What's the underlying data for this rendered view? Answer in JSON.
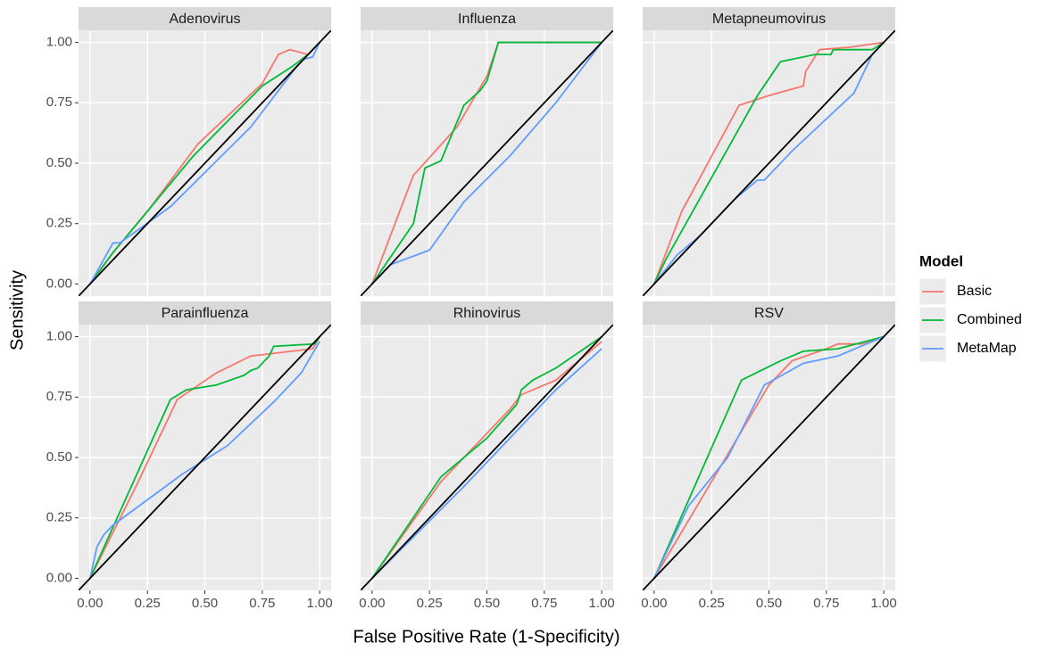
{
  "xlabel": "False Positive Rate (1-Specificity)",
  "ylabel": "Sensitivity",
  "legend": {
    "title": "Model",
    "position": "right"
  },
  "chart_data": [
    {
      "type": "line",
      "title": "Adenovirus",
      "xlim": [
        -0.05,
        1.05
      ],
      "ylim": [
        -0.05,
        1.05
      ],
      "xticks": [
        {
          "value": 0,
          "label": "0.00"
        },
        0.25,
        {
          "value": 0.5,
          "label": "0.50"
        },
        0.75,
        {
          "value": 1,
          "label": "1.00"
        }
      ],
      "yticks": [
        {
          "value": 0,
          "label": "0.00"
        },
        0.25,
        {
          "value": 0.5,
          "label": "0.50"
        },
        0.75,
        {
          "value": 1,
          "label": "1.00"
        }
      ],
      "grid": true,
      "reference_line": {
        "slope": 1,
        "intercept": 0,
        "color": "#000000"
      },
      "series": [
        {
          "name": "Basic",
          "color": "#F8766D",
          "x": [
            0,
            0.1,
            0.25,
            0.47,
            0.75,
            0.82,
            0.87,
            0.95,
            1
          ],
          "values": [
            0,
            0.13,
            0.3,
            0.58,
            0.83,
            0.95,
            0.97,
            0.95,
            1
          ]
        },
        {
          "name": "Combined",
          "color": "#00BA38",
          "x": [
            0,
            0.1,
            0.45,
            0.75,
            0.88,
            0.95,
            1
          ],
          "values": [
            0,
            0.13,
            0.53,
            0.82,
            0.9,
            0.95,
            1
          ]
        },
        {
          "name": "MetaMap",
          "color": "#619CFF",
          "x": [
            0,
            0.1,
            0.13,
            0.35,
            0.7,
            0.9,
            0.93,
            0.97,
            1
          ],
          "values": [
            0,
            0.17,
            0.17,
            0.32,
            0.65,
            0.9,
            0.93,
            0.94,
            1
          ]
        }
      ]
    },
    {
      "type": "line",
      "title": "Influenza",
      "xlim": [
        -0.05,
        1.05
      ],
      "ylim": [
        -0.05,
        1.05
      ],
      "xticks": [
        {
          "value": 0,
          "label": "0.00"
        },
        0.25,
        {
          "value": 0.5,
          "label": "0.50"
        },
        0.75,
        {
          "value": 1,
          "label": "1.00"
        }
      ],
      "yticks": [
        {
          "value": 0,
          "label": "0.00"
        },
        0.25,
        {
          "value": 0.5,
          "label": "0.50"
        },
        0.75,
        {
          "value": 1,
          "label": "1.00"
        }
      ],
      "grid": true,
      "reference_line": {
        "slope": 1,
        "intercept": 0,
        "color": "#000000"
      },
      "series": [
        {
          "name": "Basic",
          "color": "#F8766D",
          "x": [
            0,
            0.1,
            0.18,
            0.37,
            0.45,
            0.5,
            0.55,
            1
          ],
          "values": [
            0,
            0.25,
            0.45,
            0.65,
            0.78,
            0.86,
            1,
            1
          ]
        },
        {
          "name": "Combined",
          "color": "#00BA38",
          "x": [
            0,
            0.18,
            0.23,
            0.3,
            0.4,
            0.47,
            0.5,
            0.55,
            1
          ],
          "values": [
            0,
            0.25,
            0.48,
            0.51,
            0.74,
            0.8,
            0.84,
            1,
            1
          ]
        },
        {
          "name": "MetaMap",
          "color": "#619CFF",
          "x": [
            0,
            0.08,
            0.25,
            0.4,
            0.6,
            0.8,
            1
          ],
          "values": [
            0,
            0.08,
            0.14,
            0.34,
            0.53,
            0.75,
            1
          ]
        }
      ]
    },
    {
      "type": "line",
      "title": "Metapneumovirus",
      "xlim": [
        -0.05,
        1.05
      ],
      "ylim": [
        -0.05,
        1.05
      ],
      "xticks": [
        {
          "value": 0,
          "label": "0.00"
        },
        0.25,
        {
          "value": 0.5,
          "label": "0.50"
        },
        0.75,
        {
          "value": 1,
          "label": "1.00"
        }
      ],
      "yticks": [
        {
          "value": 0,
          "label": "0.00"
        },
        0.25,
        {
          "value": 0.5,
          "label": "0.50"
        },
        0.75,
        {
          "value": 1,
          "label": "1.00"
        }
      ],
      "grid": true,
      "reference_line": {
        "slope": 1,
        "intercept": 0,
        "color": "#000000"
      },
      "series": [
        {
          "name": "Basic",
          "color": "#F8766D",
          "x": [
            0,
            0.12,
            0.37,
            0.5,
            0.65,
            0.66,
            0.72,
            0.85,
            1
          ],
          "values": [
            0,
            0.3,
            0.74,
            0.78,
            0.82,
            0.88,
            0.97,
            0.98,
            1
          ]
        },
        {
          "name": "Combined",
          "color": "#00BA38",
          "x": [
            0,
            0.05,
            0.45,
            0.55,
            0.7,
            0.77,
            0.78,
            0.95,
            1
          ],
          "values": [
            0,
            0.1,
            0.78,
            0.92,
            0.95,
            0.95,
            0.97,
            0.97,
            1
          ]
        },
        {
          "name": "MetaMap",
          "color": "#619CFF",
          "x": [
            0,
            0.1,
            0.2,
            0.35,
            0.45,
            0.48,
            0.6,
            0.87,
            0.95,
            1
          ],
          "values": [
            0,
            0.12,
            0.2,
            0.35,
            0.43,
            0.43,
            0.55,
            0.79,
            0.95,
            1
          ]
        }
      ]
    },
    {
      "type": "line",
      "title": "Parainfluenza",
      "xlim": [
        -0.05,
        1.05
      ],
      "ylim": [
        -0.05,
        1.05
      ],
      "xticks": [
        {
          "value": 0,
          "label": "0.00"
        },
        0.25,
        {
          "value": 0.5,
          "label": "0.50"
        },
        0.75,
        {
          "value": 1,
          "label": "1.00"
        }
      ],
      "yticks": [
        {
          "value": 0,
          "label": "0.00"
        },
        0.25,
        {
          "value": 0.5,
          "label": "0.50"
        },
        0.75,
        {
          "value": 1,
          "label": "1.00"
        }
      ],
      "grid": true,
      "reference_line": {
        "slope": 1,
        "intercept": 0,
        "color": "#000000"
      },
      "series": [
        {
          "name": "Basic",
          "color": "#F8766D",
          "x": [
            0,
            0.2,
            0.38,
            0.55,
            0.7,
            0.97,
            1
          ],
          "values": [
            0,
            0.38,
            0.74,
            0.85,
            0.92,
            0.95,
            1
          ]
        },
        {
          "name": "Combined",
          "color": "#00BA38",
          "x": [
            0,
            0.35,
            0.42,
            0.55,
            0.67,
            0.7,
            0.73,
            0.78,
            0.8,
            0.98,
            1
          ],
          "values": [
            0,
            0.74,
            0.78,
            0.8,
            0.84,
            0.86,
            0.87,
            0.92,
            0.96,
            0.97,
            1
          ]
        },
        {
          "name": "MetaMap",
          "color": "#619CFF",
          "x": [
            0,
            0.03,
            0.06,
            0.1,
            0.4,
            0.6,
            0.8,
            0.92,
            1
          ],
          "values": [
            0,
            0.13,
            0.18,
            0.22,
            0.43,
            0.55,
            0.73,
            0.85,
            0.98
          ]
        }
      ]
    },
    {
      "type": "line",
      "title": "Rhinovirus",
      "xlim": [
        -0.05,
        1.05
      ],
      "ylim": [
        -0.05,
        1.05
      ],
      "xticks": [
        {
          "value": 0,
          "label": "0.00"
        },
        0.25,
        {
          "value": 0.5,
          "label": "0.50"
        },
        0.75,
        {
          "value": 1,
          "label": "1.00"
        }
      ],
      "yticks": [
        {
          "value": 0,
          "label": "0.00"
        },
        0.25,
        {
          "value": 0.5,
          "label": "0.50"
        },
        0.75,
        {
          "value": 1,
          "label": "1.00"
        }
      ],
      "grid": true,
      "reference_line": {
        "slope": 1,
        "intercept": 0,
        "color": "#000000"
      },
      "series": [
        {
          "name": "Basic",
          "color": "#F8766D",
          "x": [
            0,
            0.3,
            0.6,
            0.65,
            0.8,
            1
          ],
          "values": [
            0,
            0.4,
            0.7,
            0.76,
            0.82,
            0.98
          ]
        },
        {
          "name": "Combined",
          "color": "#00BA38",
          "x": [
            0,
            0.3,
            0.5,
            0.63,
            0.65,
            0.7,
            0.8,
            1
          ],
          "values": [
            0,
            0.42,
            0.58,
            0.72,
            0.78,
            0.82,
            0.87,
            1
          ]
        },
        {
          "name": "MetaMap",
          "color": "#619CFF",
          "x": [
            0,
            0.4,
            0.8,
            1
          ],
          "values": [
            0,
            0.38,
            0.78,
            0.95
          ]
        }
      ]
    },
    {
      "type": "line",
      "title": "RSV",
      "xlim": [
        -0.05,
        1.05
      ],
      "ylim": [
        -0.05,
        1.05
      ],
      "xticks": [
        {
          "value": 0,
          "label": "0.00"
        },
        0.25,
        {
          "value": 0.5,
          "label": "0.50"
        },
        0.75,
        {
          "value": 1,
          "label": "1.00"
        }
      ],
      "yticks": [
        {
          "value": 0,
          "label": "0.00"
        },
        0.25,
        {
          "value": 0.5,
          "label": "0.50"
        },
        0.75,
        {
          "value": 1,
          "label": "1.00"
        }
      ],
      "grid": true,
      "reference_line": {
        "slope": 1,
        "intercept": 0,
        "color": "#000000"
      },
      "series": [
        {
          "name": "Basic",
          "color": "#F8766D",
          "x": [
            0,
            0.25,
            0.5,
            0.6,
            0.75,
            0.8,
            0.9,
            1
          ],
          "values": [
            0,
            0.4,
            0.8,
            0.9,
            0.95,
            0.97,
            0.97,
            1
          ]
        },
        {
          "name": "Combined",
          "color": "#00BA38",
          "x": [
            0,
            0.38,
            0.55,
            0.65,
            0.8,
            1
          ],
          "values": [
            0,
            0.82,
            0.9,
            0.94,
            0.95,
            1
          ]
        },
        {
          "name": "MetaMap",
          "color": "#619CFF",
          "x": [
            0,
            0.15,
            0.32,
            0.48,
            0.65,
            0.8,
            1
          ],
          "values": [
            0,
            0.3,
            0.5,
            0.8,
            0.89,
            0.92,
            1
          ]
        }
      ]
    }
  ]
}
